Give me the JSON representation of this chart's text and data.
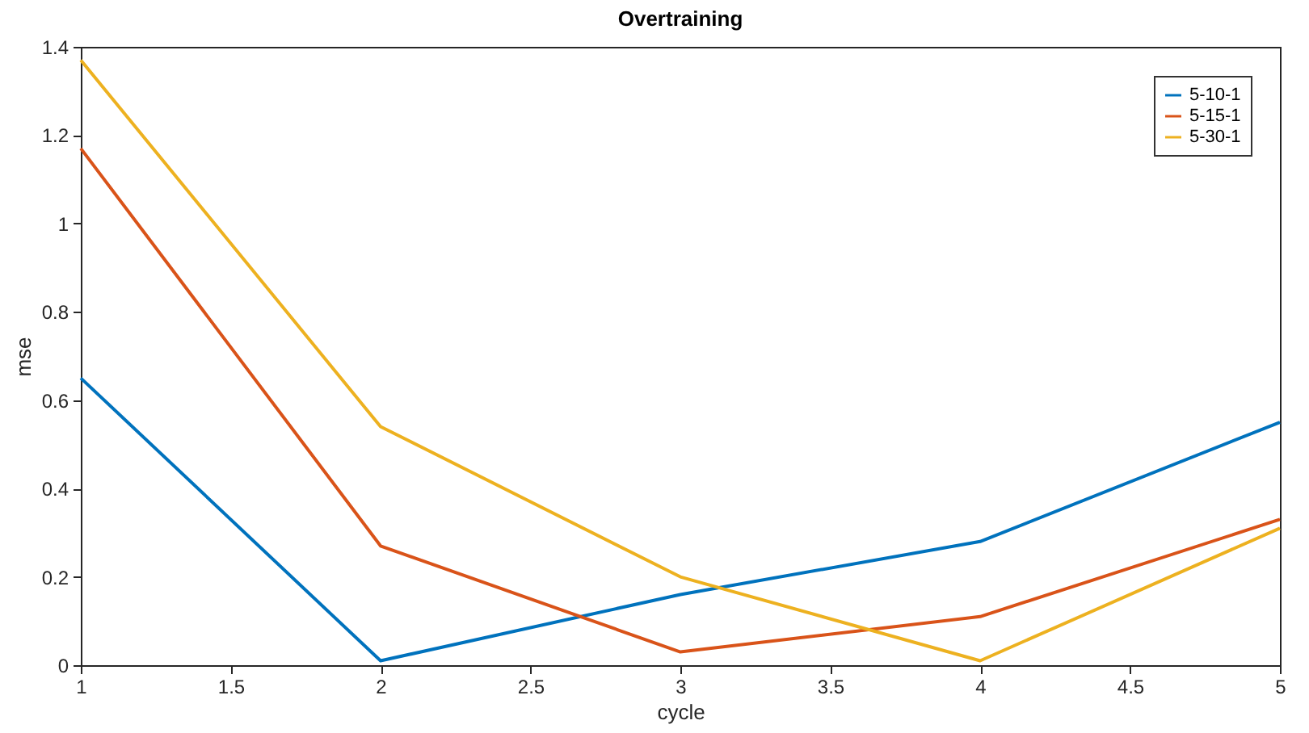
{
  "chart_data": {
    "type": "line",
    "title": "Overtraining",
    "xlabel": "cycle",
    "ylabel": "mse",
    "x": [
      1,
      2,
      3,
      4,
      5
    ],
    "series": [
      {
        "name": "5-10-1",
        "color": "#0072bd",
        "values": [
          0.65,
          0.01,
          0.16,
          0.28,
          0.55
        ]
      },
      {
        "name": "5-15-1",
        "color": "#d95319",
        "values": [
          1.17,
          0.27,
          0.03,
          0.11,
          0.33
        ]
      },
      {
        "name": "5-30-1",
        "color": "#edb120",
        "values": [
          1.37,
          0.54,
          0.2,
          0.01,
          0.31
        ]
      }
    ],
    "xlim": [
      1,
      5
    ],
    "xticks": [
      1,
      1.5,
      2,
      2.5,
      3,
      3.5,
      4,
      4.5,
      5
    ],
    "ylim": [
      0,
      1.4
    ],
    "yticks": [
      0,
      0.2,
      0.4,
      0.6,
      0.8,
      1,
      1.2,
      1.4
    ],
    "legend": "top right",
    "marker": "none",
    "line_style": "solid",
    "grid": false
  }
}
